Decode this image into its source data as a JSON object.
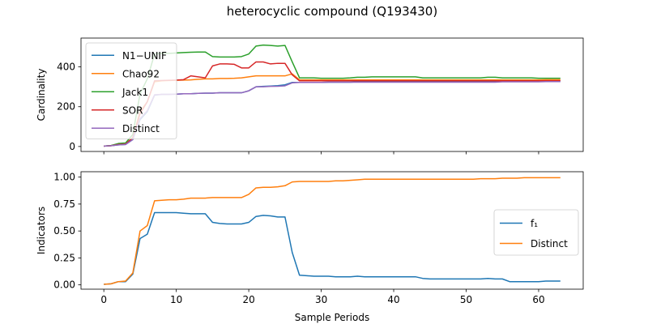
{
  "figure": {
    "title": "heterocyclic compound (Q193430)"
  },
  "colors": {
    "blue": "#1f77b4",
    "orange": "#ff7f0e",
    "green": "#2ca02c",
    "red": "#d62728",
    "purple": "#9467bd"
  },
  "chart_data": [
    {
      "type": "line",
      "ylabel": "Cardinality",
      "xlabel": "",
      "xlim": [
        -3.15,
        66.15
      ],
      "ylim": [
        -25,
        545
      ],
      "xticks": [
        0,
        10,
        20,
        30,
        40,
        50,
        60
      ],
      "yticks": [
        0,
        200,
        400
      ],
      "show_xtick_labels": false,
      "legend_position": "upper-left",
      "x": [
        0,
        1,
        2,
        3,
        4,
        5,
        6,
        7,
        8,
        9,
        10,
        11,
        12,
        13,
        14,
        15,
        16,
        17,
        18,
        19,
        20,
        21,
        22,
        23,
        24,
        25,
        26,
        27,
        28,
        29,
        30,
        31,
        32,
        33,
        34,
        35,
        36,
        37,
        38,
        39,
        40,
        41,
        42,
        43,
        44,
        45,
        46,
        47,
        48,
        49,
        50,
        51,
        52,
        53,
        54,
        55,
        56,
        57,
        58,
        59,
        60,
        61,
        62,
        63
      ],
      "series": [
        {
          "name": "N1−UNIF",
          "color": "#1f77b4",
          "values": [
            2,
            4,
            8,
            10,
            35,
            135,
            175,
            258,
            262,
            262,
            263,
            265,
            265,
            267,
            268,
            268,
            270,
            270,
            270,
            270,
            280,
            300,
            302,
            304,
            306,
            310,
            322,
            322,
            322,
            322,
            322,
            323,
            323,
            323,
            323,
            325,
            325,
            325,
            325,
            325,
            325,
            325,
            325,
            325,
            325,
            325,
            325,
            325,
            325,
            325,
            325,
            325,
            325,
            325,
            325,
            328,
            328,
            328,
            328,
            328,
            328,
            330,
            330,
            330
          ]
        },
        {
          "name": "Chao92",
          "color": "#ff7f0e",
          "values": [
            2,
            4,
            10,
            12,
            45,
            175,
            225,
            325,
            330,
            332,
            333,
            334,
            335,
            338,
            340,
            340,
            342,
            342,
            343,
            345,
            350,
            355,
            355,
            355,
            355,
            355,
            365,
            335,
            335,
            335,
            335,
            335,
            335,
            335,
            335,
            335,
            335,
            335,
            335,
            335,
            335,
            335,
            335,
            335,
            335,
            335,
            335,
            335,
            335,
            335,
            335,
            335,
            335,
            335,
            335,
            335,
            335,
            335,
            335,
            335,
            335,
            336,
            336,
            336
          ]
        },
        {
          "name": "Jack1",
          "color": "#2ca02c",
          "values": [
            2,
            5,
            15,
            18,
            60,
            265,
            340,
            465,
            468,
            468,
            470,
            472,
            474,
            475,
            475,
            452,
            450,
            450,
            450,
            452,
            465,
            505,
            510,
            508,
            505,
            508,
            425,
            345,
            345,
            345,
            343,
            343,
            343,
            343,
            345,
            348,
            348,
            350,
            350,
            350,
            350,
            350,
            350,
            350,
            345,
            345,
            345,
            345,
            345,
            345,
            345,
            345,
            345,
            348,
            348,
            345,
            345,
            345,
            345,
            345,
            343,
            343,
            343,
            343
          ]
        },
        {
          "name": "SOR",
          "color": "#d62728",
          "values": [
            2,
            4,
            10,
            12,
            45,
            165,
            225,
            330,
            332,
            333,
            334,
            336,
            355,
            350,
            345,
            405,
            415,
            415,
            413,
            395,
            395,
            425,
            425,
            415,
            418,
            418,
            360,
            330,
            330,
            330,
            330,
            330,
            330,
            330,
            330,
            330,
            330,
            330,
            330,
            330,
            330,
            330,
            330,
            330,
            330,
            330,
            330,
            330,
            330,
            330,
            330,
            330,
            330,
            330,
            330,
            330,
            330,
            330,
            330,
            330,
            330,
            330,
            330,
            330
          ]
        },
        {
          "name": "Distinct",
          "color": "#9467bd",
          "values": [
            2,
            4,
            8,
            10,
            35,
            140,
            180,
            260,
            262,
            262,
            263,
            265,
            265,
            267,
            268,
            268,
            270,
            270,
            270,
            270,
            280,
            300,
            300,
            302,
            303,
            305,
            320,
            322,
            322,
            322,
            322,
            323,
            323,
            323,
            323,
            323,
            323,
            323,
            323,
            323,
            323,
            323,
            323,
            323,
            323,
            323,
            323,
            323,
            323,
            323,
            323,
            323,
            323,
            323,
            323,
            325,
            325,
            325,
            325,
            325,
            325,
            326,
            326,
            326
          ]
        }
      ]
    },
    {
      "type": "line",
      "ylabel": "Indicators",
      "xlabel": "Sample Periods",
      "xlim": [
        -3.15,
        66.15
      ],
      "ylim": [
        -0.04,
        1.05
      ],
      "xticks": [
        0,
        10,
        20,
        30,
        40,
        50,
        60
      ],
      "yticks": [
        0.0,
        0.25,
        0.5,
        0.75,
        1.0
      ],
      "ytick_labels": [
        "0.00",
        "0.25",
        "0.50",
        "0.75",
        "1.00"
      ],
      "legend_position": "center-right",
      "x": [
        0,
        1,
        2,
        3,
        4,
        5,
        6,
        7,
        8,
        9,
        10,
        11,
        12,
        13,
        14,
        15,
        16,
        17,
        18,
        19,
        20,
        21,
        22,
        23,
        24,
        25,
        26,
        27,
        28,
        29,
        30,
        31,
        32,
        33,
        34,
        35,
        36,
        37,
        38,
        39,
        40,
        41,
        42,
        43,
        44,
        45,
        46,
        47,
        48,
        49,
        50,
        51,
        52,
        53,
        54,
        55,
        56,
        57,
        58,
        59,
        60,
        61,
        62,
        63
      ],
      "series": [
        {
          "name": "f₁",
          "color": "#1f77b4",
          "values": [
            0.005,
            0.01,
            0.03,
            0.03,
            0.1,
            0.43,
            0.47,
            0.67,
            0.67,
            0.67,
            0.67,
            0.665,
            0.66,
            0.66,
            0.66,
            0.58,
            0.57,
            0.565,
            0.565,
            0.565,
            0.58,
            0.635,
            0.645,
            0.64,
            0.63,
            0.63,
            0.3,
            0.09,
            0.085,
            0.08,
            0.08,
            0.08,
            0.075,
            0.075,
            0.075,
            0.08,
            0.075,
            0.075,
            0.075,
            0.075,
            0.075,
            0.075,
            0.075,
            0.075,
            0.06,
            0.055,
            0.055,
            0.055,
            0.055,
            0.055,
            0.055,
            0.055,
            0.055,
            0.06,
            0.055,
            0.055,
            0.03,
            0.03,
            0.03,
            0.03,
            0.03,
            0.035,
            0.035,
            0.035
          ]
        },
        {
          "name": "Distinct",
          "color": "#ff7f0e",
          "values": [
            0.005,
            0.01,
            0.03,
            0.035,
            0.11,
            0.5,
            0.55,
            0.78,
            0.785,
            0.79,
            0.79,
            0.795,
            0.805,
            0.805,
            0.805,
            0.81,
            0.81,
            0.81,
            0.81,
            0.81,
            0.84,
            0.9,
            0.905,
            0.905,
            0.91,
            0.92,
            0.955,
            0.96,
            0.96,
            0.96,
            0.96,
            0.96,
            0.965,
            0.965,
            0.97,
            0.975,
            0.98,
            0.98,
            0.98,
            0.98,
            0.98,
            0.98,
            0.98,
            0.98,
            0.98,
            0.98,
            0.98,
            0.98,
            0.98,
            0.98,
            0.98,
            0.98,
            0.985,
            0.985,
            0.985,
            0.99,
            0.99,
            0.99,
            0.995,
            0.995,
            0.995,
            0.995,
            0.995,
            0.995
          ]
        }
      ]
    }
  ]
}
